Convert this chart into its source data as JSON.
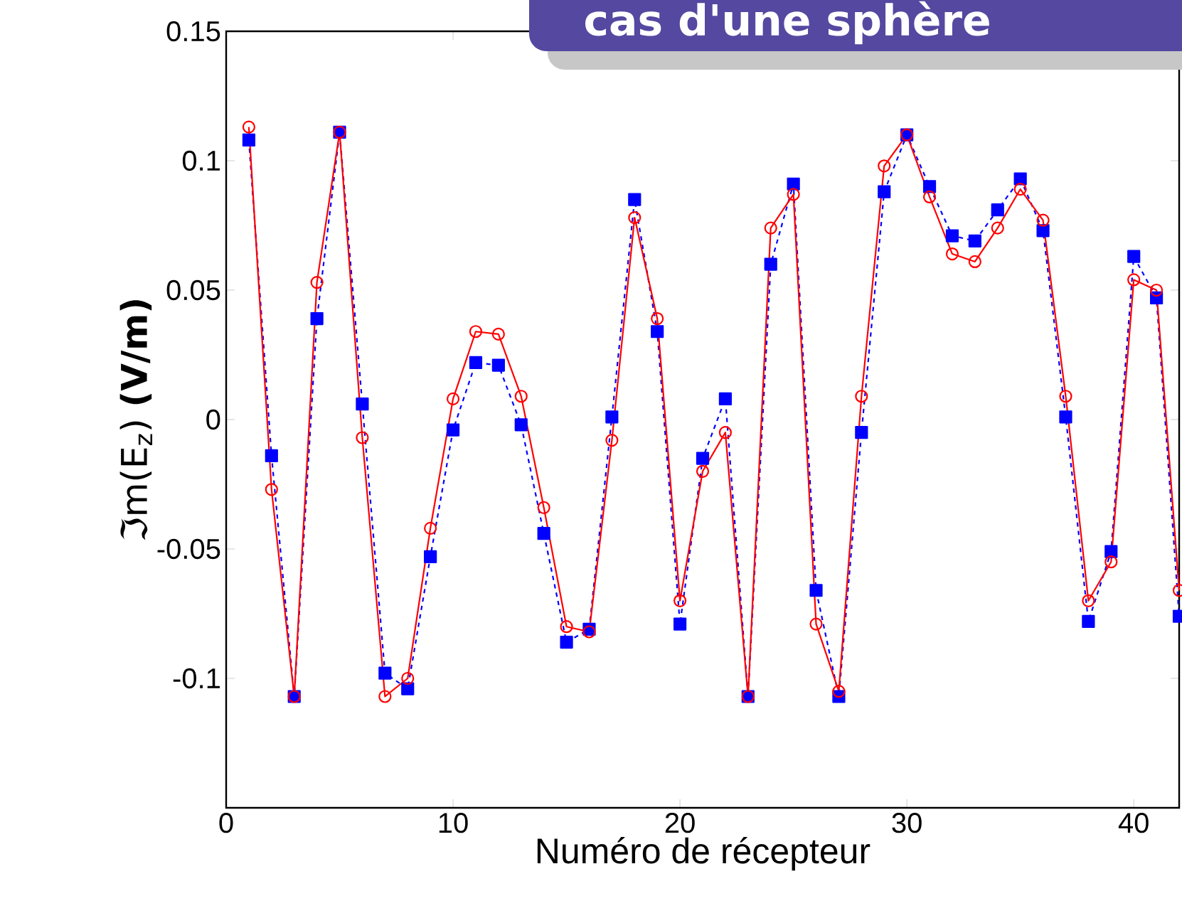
{
  "chart_data": {
    "type": "line",
    "title": "cas d'une sphère",
    "xlabel": "Numéro de récepteur",
    "ylabel": "ℑm(E$_{z}$) **(V/m)**",
    "x": [
      1,
      2,
      3,
      4,
      5,
      6,
      7,
      8,
      9,
      10,
      11,
      12,
      13,
      14,
      15,
      16,
      17,
      18,
      19,
      20,
      21,
      22,
      23,
      24,
      25,
      26,
      27,
      28,
      29,
      30,
      31,
      32,
      33,
      34,
      35,
      36,
      37,
      38,
      39,
      40,
      41,
      42
    ],
    "xlim": [
      0,
      42
    ],
    "xticks": [
      0,
      10,
      20,
      30,
      40
    ],
    "ylim": [
      -0.15,
      0.15
    ],
    "yticks": [
      -0.1,
      -0.05,
      0,
      0.05,
      0.1,
      0.15
    ],
    "series": [
      {
        "color": "#0000ff",
        "marker": "square",
        "line_style": "dashed",
        "values": [
          0.108,
          -0.014,
          -0.107,
          0.039,
          0.111,
          0.006,
          -0.098,
          -0.104,
          -0.053,
          -0.004,
          0.022,
          0.021,
          -0.002,
          -0.044,
          -0.086,
          -0.081,
          0.001,
          0.085,
          0.034,
          -0.079,
          -0.015,
          0.008,
          -0.107,
          0.06,
          0.091,
          -0.066,
          -0.107,
          -0.005,
          0.088,
          0.11,
          0.09,
          0.071,
          0.069,
          0.081,
          0.093,
          0.073,
          0.001,
          -0.078,
          -0.051,
          0.063,
          0.047,
          -0.076
        ]
      },
      {
        "color": "#ff0000",
        "marker": "circle",
        "line_style": "solid",
        "values": [
          0.113,
          -0.027,
          -0.107,
          0.053,
          0.111,
          -0.007,
          -0.107,
          -0.1,
          -0.042,
          0.008,
          0.034,
          0.033,
          0.009,
          -0.034,
          -0.08,
          -0.082,
          -0.008,
          0.078,
          0.039,
          -0.07,
          -0.02,
          -0.005,
          -0.107,
          0.074,
          0.087,
          -0.079,
          -0.105,
          0.009,
          0.098,
          0.11,
          0.086,
          0.064,
          0.061,
          0.074,
          0.089,
          0.077,
          0.009,
          -0.07,
          -0.055,
          0.054,
          0.05,
          -0.066
        ]
      }
    ]
  }
}
